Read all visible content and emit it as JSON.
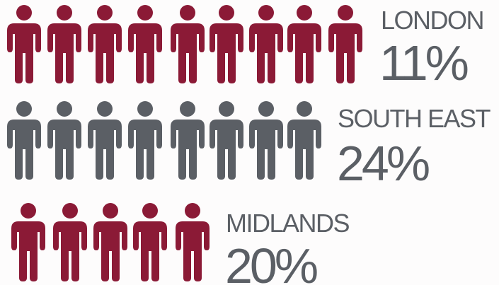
{
  "chart_data": {
    "type": "pictogram",
    "rows": [
      {
        "region": "LONDON",
        "value_label": "11%",
        "value": 11,
        "icon_count": 9,
        "color": "#8b1a36"
      },
      {
        "region": "SOUTH EAST",
        "value_label": "24%",
        "value": 24,
        "icon_count": 8,
        "color": "#5b5f65"
      },
      {
        "region": "MIDLANDS",
        "value_label": "20%",
        "value": 20,
        "icon_count": 5,
        "color": "#8b1a36"
      }
    ],
    "icon": "person-icon",
    "text_color": "#5b5f65",
    "background": "#fdfcfc"
  }
}
